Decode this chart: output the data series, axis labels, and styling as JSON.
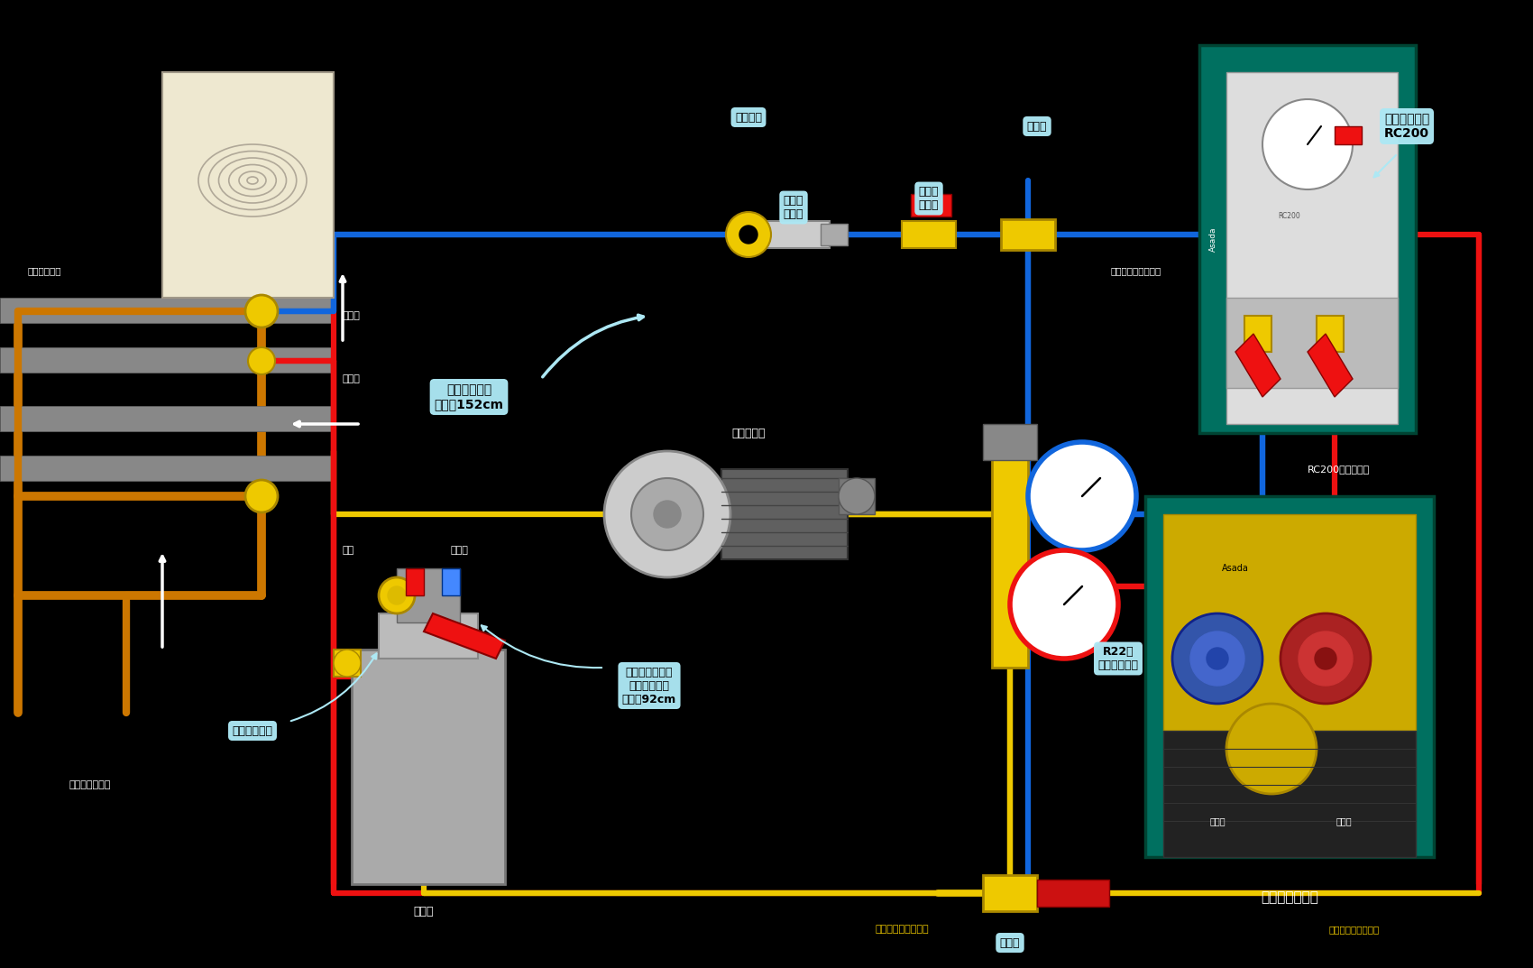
{
  "bg_color": "#000000",
  "fig_width": 17.0,
  "fig_height": 10.73,
  "labels": {
    "existing_pipe": "冷媒既設配管",
    "high_pressure": "高圧側",
    "low_pressure": "低圧側",
    "bypass_pipe": "バイパス用銅管",
    "filter": "フィルタ",
    "sight_glass_top": "サイト\nグラス",
    "ball_valve": "ボール\nバルブ",
    "cheese_top": "チーズ",
    "recovery_hose_top": "回収装置付属ホース",
    "eco_cycle": "エコサイクル\nRC200",
    "rc200_hose": "RC200付属ホース",
    "charging_hose": "チャージング\nホース152cm",
    "vacuum_pump": "真空ポンプ",
    "manifold": "R22用\nマニホールド",
    "liquid_side": "液側",
    "gas_side": "ガス側",
    "sight_glass_bottom": "サイトグラス",
    "ball_valve_hose": "ボールバルブ付\nチャージング\nホース92cm",
    "cylinder": "ボンベ",
    "cheese_bottom": "チーズ",
    "safety_cable": "セーフティケーブル",
    "recovery_hose_bottom": "回収装置付属ホース",
    "flon_recovery": "フロン回収装置",
    "inlet": "取入口",
    "outlet": "吾出口"
  },
  "colors": {
    "red": "#EE1111",
    "blue": "#1166DD",
    "yellow": "#EEC900",
    "orange": "#CC7700",
    "gray_panel": "#888888",
    "gray_dark": "#555555",
    "light_blue_label": "#ADE8F4",
    "white": "#FFFFFF",
    "black": "#000000",
    "teal_rc200": "#007060",
    "teal_flon": "#007060",
    "beige": "#EEE8D0",
    "silver": "#CCCCCC",
    "dark_gray": "#444444",
    "medium_gray": "#888888",
    "yellow_device": "#D4AA00"
  }
}
